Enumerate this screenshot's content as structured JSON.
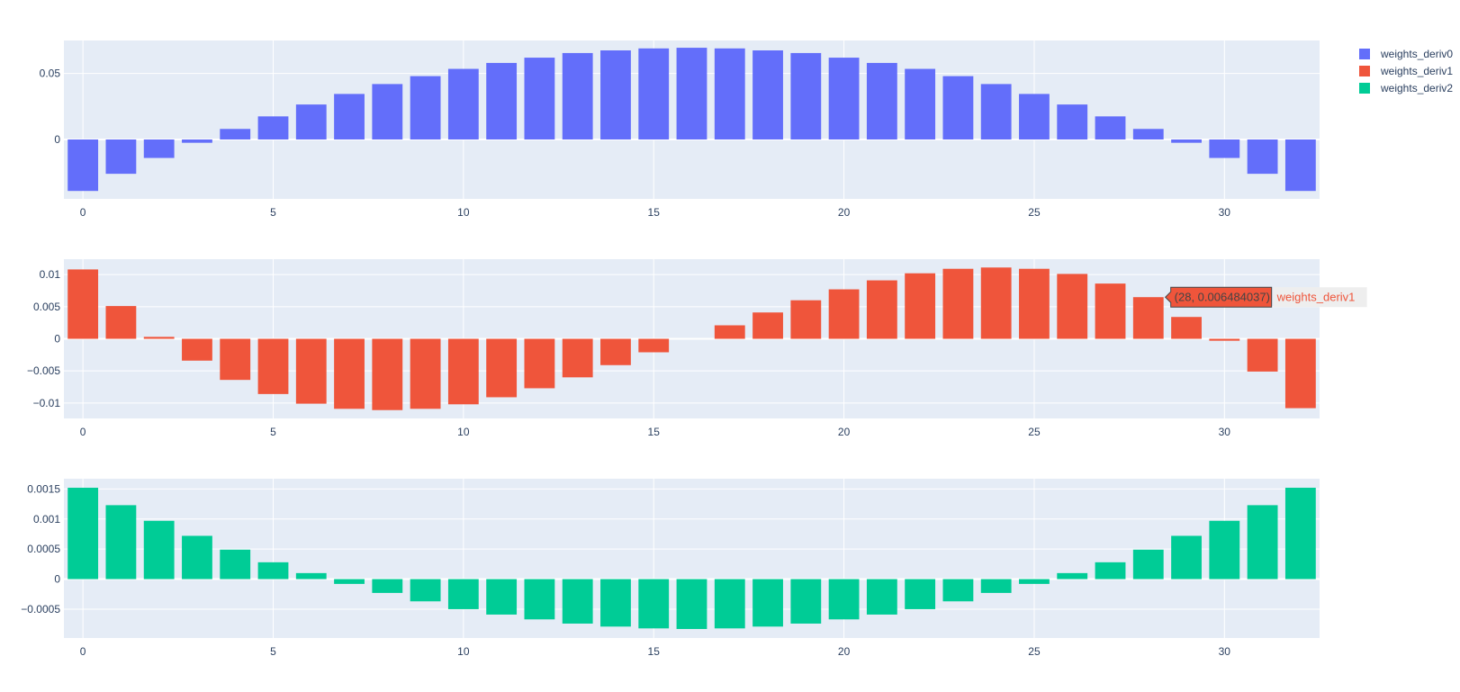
{
  "chart_data": [
    {
      "type": "bar",
      "series_name": "weights_deriv0",
      "color": "#636efa",
      "x": [
        0,
        1,
        2,
        3,
        4,
        5,
        6,
        7,
        8,
        9,
        10,
        11,
        12,
        13,
        14,
        15,
        16,
        17,
        18,
        19,
        20,
        21,
        22,
        23,
        24,
        25,
        26,
        27,
        28,
        29,
        30,
        31,
        32
      ],
      "values": [
        -0.039,
        -0.026,
        -0.014,
        -0.0025,
        0.008,
        0.0175,
        0.0265,
        0.0345,
        0.042,
        0.048,
        0.0535,
        0.058,
        0.062,
        0.0655,
        0.0675,
        0.069,
        0.0695,
        0.069,
        0.0675,
        0.0655,
        0.062,
        0.058,
        0.0535,
        0.048,
        0.042,
        0.0345,
        0.0265,
        0.0175,
        0.008,
        -0.0025,
        -0.014,
        -0.026,
        -0.039
      ],
      "xlim": [
        -0.5,
        32.5
      ],
      "ylim": [
        -0.045,
        0.075
      ],
      "xticks": [
        0,
        5,
        10,
        15,
        20,
        25,
        30
      ],
      "yticks": [
        0,
        0.05
      ],
      "ytick_labels": [
        "0",
        "0.05"
      ],
      "grid": true
    },
    {
      "type": "bar",
      "series_name": "weights_deriv1",
      "color": "#ef553b",
      "x": [
        0,
        1,
        2,
        3,
        4,
        5,
        6,
        7,
        8,
        9,
        10,
        11,
        12,
        13,
        14,
        15,
        16,
        17,
        18,
        19,
        20,
        21,
        22,
        23,
        24,
        25,
        26,
        27,
        28,
        29,
        30,
        31,
        32
      ],
      "values": [
        0.0108,
        0.0051,
        0.0003,
        -0.0034,
        -0.0064,
        -0.0086,
        -0.0101,
        -0.0109,
        -0.0111,
        -0.0109,
        -0.0102,
        -0.0091,
        -0.0077,
        -0.006,
        -0.0041,
        -0.0021,
        0.0,
        0.0021,
        0.0041,
        0.006,
        0.0077,
        0.0091,
        0.0102,
        0.0109,
        0.0111,
        0.0109,
        0.0101,
        0.0086,
        0.006484037,
        0.0034,
        -0.0003,
        -0.0051,
        -0.0108
      ],
      "xlim": [
        -0.5,
        32.5
      ],
      "ylim": [
        -0.0124,
        0.0124
      ],
      "xticks": [
        0,
        5,
        10,
        15,
        20,
        25,
        30
      ],
      "yticks": [
        -0.01,
        -0.005,
        0,
        0.005,
        0.01
      ],
      "ytick_labels": [
        "−0.01",
        "−0.005",
        "0",
        "0.005",
        "0.01"
      ],
      "grid": true,
      "hover": {
        "x": 28,
        "text": "(28, 0.006484037)",
        "series_label": "weights_deriv1"
      }
    },
    {
      "type": "bar",
      "series_name": "weights_deriv2",
      "color": "#00cc96",
      "x": [
        0,
        1,
        2,
        3,
        4,
        5,
        6,
        7,
        8,
        9,
        10,
        11,
        12,
        13,
        14,
        15,
        16,
        17,
        18,
        19,
        20,
        21,
        22,
        23,
        24,
        25,
        26,
        27,
        28,
        29,
        30,
        31,
        32
      ],
      "values": [
        0.00152,
        0.00123,
        0.00097,
        0.00072,
        0.00049,
        0.00028,
        0.0001,
        -8e-05,
        -0.00023,
        -0.00037,
        -0.0005,
        -0.00059,
        -0.00067,
        -0.00074,
        -0.00079,
        -0.00082,
        -0.00083,
        -0.00082,
        -0.00079,
        -0.00074,
        -0.00067,
        -0.00059,
        -0.0005,
        -0.00037,
        -0.00023,
        -8e-05,
        0.0001,
        0.00028,
        0.00049,
        0.00072,
        0.00097,
        0.00123,
        0.00152
      ],
      "xlim": [
        -0.5,
        32.5
      ],
      "ylim": [
        -0.00098,
        0.00167
      ],
      "xticks": [
        0,
        5,
        10,
        15,
        20,
        25,
        30
      ],
      "yticks": [
        -0.0005,
        0,
        0.0005,
        0.001,
        0.0015
      ],
      "ytick_labels": [
        "−0.0005",
        "0",
        "0.0005",
        "0.001",
        "0.0015"
      ],
      "grid": true
    }
  ],
  "legend": {
    "placement": "top-right",
    "items": [
      {
        "label": "weights_deriv0",
        "color": "#636efa"
      },
      {
        "label": "weights_deriv1",
        "color": "#ef553b"
      },
      {
        "label": "weights_deriv2",
        "color": "#00cc96"
      }
    ]
  },
  "style": {
    "plot_background": "#e5ecf6",
    "grid_color": "#ffffff",
    "tick_text_color": "#2a3f5f"
  }
}
